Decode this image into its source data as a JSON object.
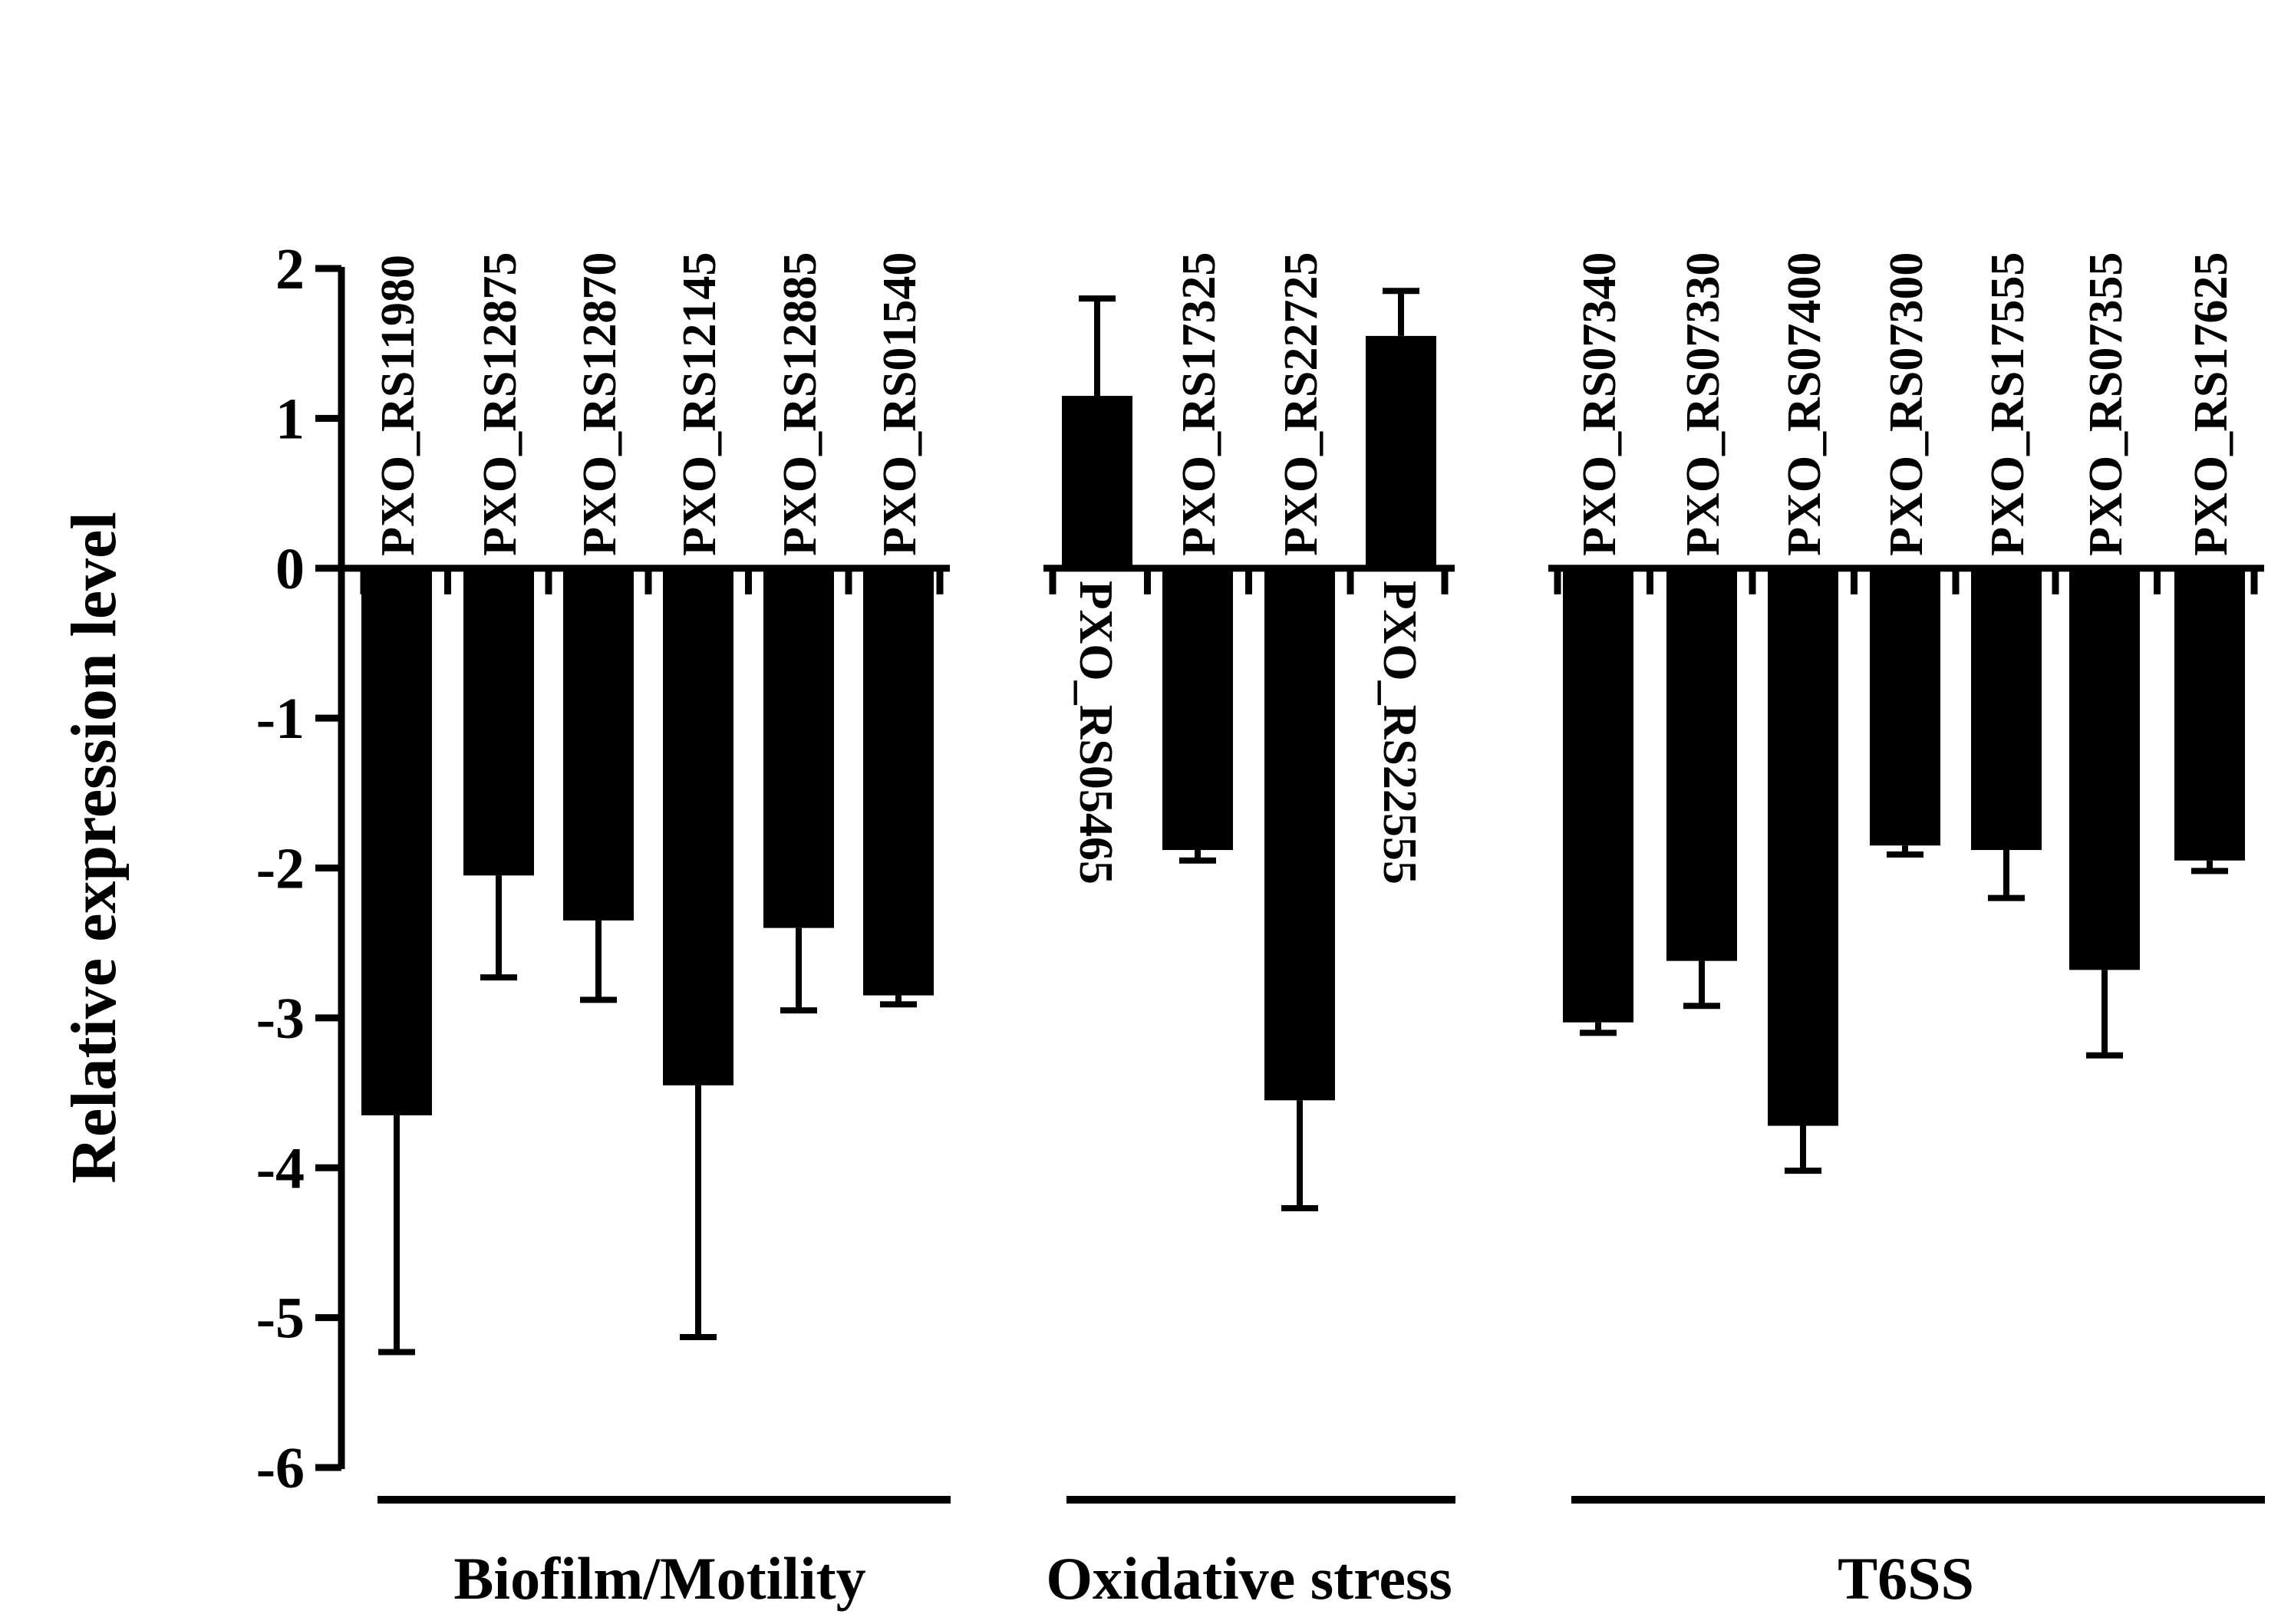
{
  "chart_data": {
    "type": "bar",
    "title": "",
    "xlabel": "",
    "ylabel": "Relative expression level",
    "ylim": [
      -6,
      2
    ],
    "yticks": [
      2,
      1,
      0,
      -1,
      -2,
      -3,
      -4,
      -5,
      -6
    ],
    "ytick_labels": [
      "2",
      "1",
      "0",
      "-1",
      "-2",
      "-3",
      "-4",
      "-5",
      "-6"
    ],
    "grid": false,
    "categories": [
      "PXO_RS11980",
      "PXO_RS12875",
      "PXO_RS12870",
      "PXO_RS12145",
      "PXO_RS12885",
      "PXO_RS01540",
      "PXO_RS05465",
      "PXO_RS17325",
      "PXO_RS22725",
      "PXO_RS22555",
      "PXO_RS07340",
      "PXO_RS07330",
      "PXO_RS07400",
      "PXO_RS07300",
      "PXO_RS17555",
      "PXO_RS07355",
      "PXO_RS17625"
    ],
    "values": [
      -3.65,
      -2.05,
      -2.35,
      -3.45,
      -2.4,
      -2.85,
      1.15,
      -1.88,
      -3.55,
      1.55,
      -3.03,
      -2.62,
      -3.72,
      -1.85,
      -1.88,
      -2.68,
      -1.95
    ],
    "errors": [
      1.58,
      0.68,
      0.53,
      1.68,
      0.55,
      0.06,
      0.65,
      0.07,
      0.72,
      0.3,
      0.07,
      0.3,
      0.3,
      0.06,
      0.32,
      0.57,
      0.07
    ],
    "bar_color": "#000000",
    "groups": [
      {
        "name": "Biofilm/Motility",
        "indices": [
          0,
          1,
          2,
          3,
          4,
          5
        ]
      },
      {
        "name": "Oxidative stress",
        "indices": [
          6,
          7,
          8,
          9
        ]
      },
      {
        "name": "T6SS",
        "indices": [
          10,
          11,
          12,
          13,
          14,
          15,
          16
        ]
      }
    ]
  }
}
